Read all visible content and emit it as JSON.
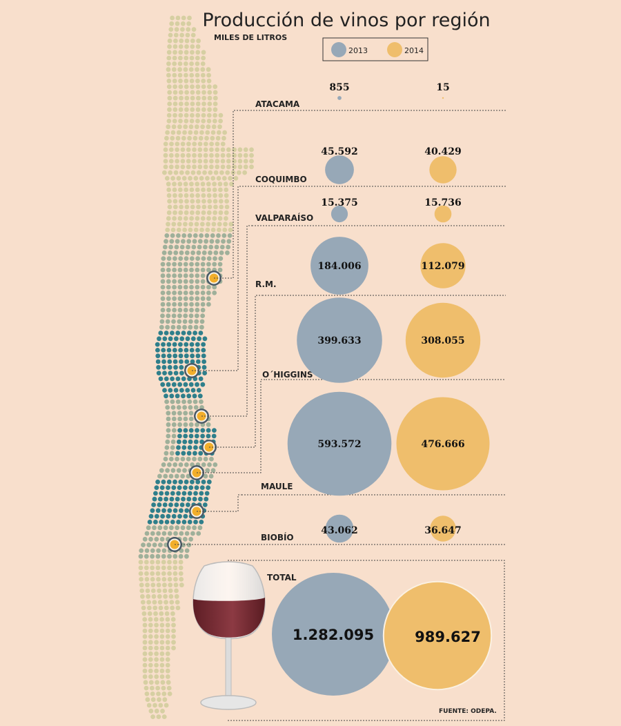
{
  "title": "Producción de vinos por región",
  "subtitle": "MILES DE LITROS",
  "source": "FUENTE: ODEPA.",
  "total_label": "TOTAL",
  "colors": {
    "y2013": "#97a8b7",
    "y2014": "#efbe6c",
    "background": "#f8dfcc",
    "map_light": "#d6cfa2",
    "map_mid": "#9fb09a",
    "map_dark": "#2f7f8b",
    "marker_ring": "#4a5966",
    "marker_fill": "#f2ae2a"
  },
  "chart_data": {
    "type": "bubble",
    "title": "Producción de vinos por región",
    "unit": "MILES DE LITROS",
    "legend": {
      "placement": "top",
      "entries": [
        "2013",
        "2014"
      ]
    },
    "series": [
      {
        "name": "2013"
      },
      {
        "name": "2014"
      }
    ],
    "regions": [
      {
        "name": "ATACAMA",
        "v2013": 855,
        "v2014": 15,
        "label2013": "855",
        "label2014": "15"
      },
      {
        "name": "COQUIMBO",
        "v2013": 45592,
        "v2014": 40429,
        "label2013": "45.592",
        "label2014": "40.429"
      },
      {
        "name": "VALPARAÍSO",
        "v2013": 15375,
        "v2014": 15736,
        "label2013": "15.375",
        "label2014": "15.736"
      },
      {
        "name": "R.M.",
        "v2013": 184006,
        "v2014": 112079,
        "label2013": "184.006",
        "label2014": "112.079"
      },
      {
        "name": "O´HIGGINS",
        "v2013": 399633,
        "v2014": 308055,
        "label2013": "399.633",
        "label2014": "308.055"
      },
      {
        "name": "MAULE",
        "v2013": 593572,
        "v2014": 476666,
        "label2013": "593.572",
        "label2014": "476.666"
      },
      {
        "name": "BIOBÍO",
        "v2013": 43062,
        "v2014": 36647,
        "label2013": "43.062",
        "label2014": "36.647"
      }
    ],
    "total": {
      "v2013": 1282095,
      "v2014": 989627,
      "label2013": "1.282.095",
      "label2014": "989.627"
    }
  }
}
